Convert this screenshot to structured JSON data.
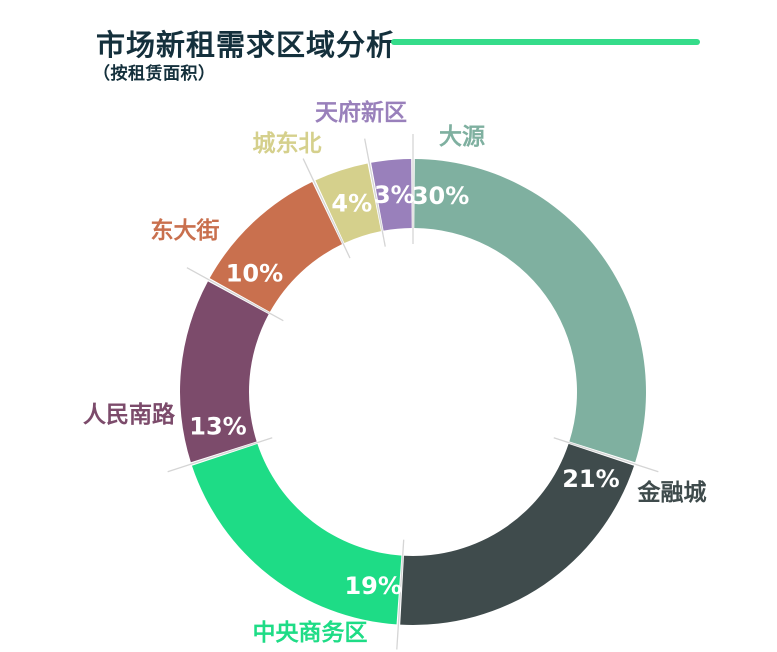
{
  "header": {
    "title": "市场新租需求区域分析",
    "subtitle": "（按租赁面积）",
    "title_color": "#14303C",
    "accent_color": "#35DC8A"
  },
  "chart_data": {
    "type": "pie",
    "subtype": "donut",
    "title": "市场新租需求区域分析",
    "subtitle": "（按租赁面积）",
    "unit": "%",
    "start_angle_deg": 0,
    "direction": "clockwise",
    "hole_ratio": 0.7,
    "legend_position": "around-labels",
    "categories": [
      "大源",
      "金融城",
      "中央商务区",
      "人民南路",
      "东大街",
      "城东北",
      "天府新区"
    ],
    "values": [
      30,
      21,
      19,
      13,
      10,
      4,
      3
    ],
    "segments": [
      {
        "name": "大源",
        "value": 30,
        "percent_label": "30%",
        "color": "#7FB0A0"
      },
      {
        "name": "金融城",
        "value": 21,
        "percent_label": "21%",
        "color": "#3F4B4C"
      },
      {
        "name": "中央商务区",
        "value": 19,
        "percent_label": "19%",
        "color": "#1EDC86"
      },
      {
        "name": "人民南路",
        "value": 13,
        "percent_label": "13%",
        "color": "#7C4B6B"
      },
      {
        "name": "东大街",
        "value": 10,
        "percent_label": "10%",
        "color": "#C9704E"
      },
      {
        "name": "城东北",
        "value": 4,
        "percent_label": "4%",
        "color": "#D5D08C"
      },
      {
        "name": "天府新区",
        "value": 3,
        "percent_label": "3%",
        "color": "#9980BB"
      }
    ],
    "value_label_color": "#FFFFFF",
    "boundary_tick_color": "#D5D5D5"
  }
}
